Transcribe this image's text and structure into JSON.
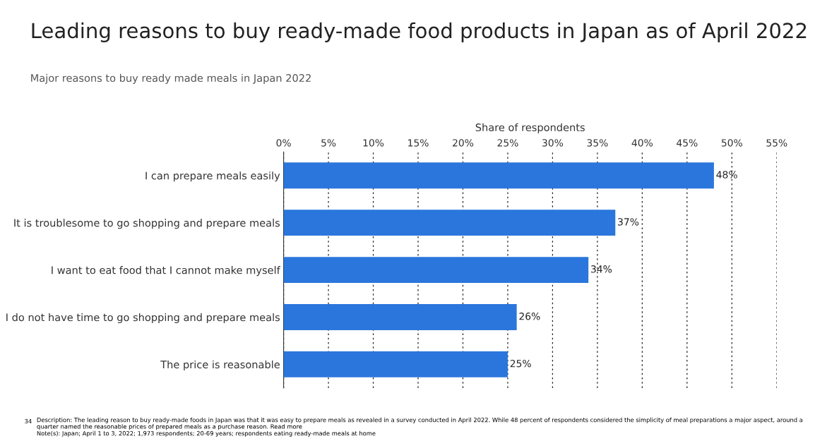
{
  "chart_data": {
    "type": "bar",
    "orientation": "horizontal",
    "title": "Leading reasons to buy ready-made food products in Japan as of April 2022",
    "subtitle": "Major reasons to buy ready made meals in Japan 2022",
    "xlabel": "Share of respondents",
    "categories": [
      "I can prepare meals easily",
      "It is troublesome to go shopping and prepare meals",
      "I want to eat food that I cannot make myself",
      "I do not have time to go shopping and prepare meals",
      "The price is reasonable"
    ],
    "values": [
      48,
      37,
      34,
      26,
      25
    ],
    "color": "#2a76dd",
    "value_labels": [
      "48%",
      "37%",
      "34%",
      "26%",
      "25%"
    ],
    "xlim": [
      0,
      55
    ],
    "xticks": [
      {
        "value": 0,
        "label": "0%"
      },
      {
        "value": 5,
        "label": "5%"
      },
      {
        "value": 10,
        "label": "10%"
      },
      {
        "value": 15,
        "label": "15%"
      },
      {
        "value": 20,
        "label": "20%"
      },
      {
        "value": 25,
        "label": "25%"
      },
      {
        "value": 30,
        "label": "30%"
      },
      {
        "value": 35,
        "label": "35%"
      },
      {
        "value": 40,
        "label": "40%"
      },
      {
        "value": 45,
        "label": "45%"
      },
      {
        "value": 50,
        "label": "50%"
      },
      {
        "value": 55,
        "label": "55%"
      }
    ],
    "grid": "x",
    "legend": false,
    "annotations": [
      "34",
      "Description: The leading reason to buy ready-made foods in Japan was that it was easy to prepare meals as revealed in a survey conducted in April 2022. While 48 percent of respondents considered the simplicity of meal preparations a major aspect, around a quarter named the reasonable prices of prepared meals as a purchase reason. Read more",
      "Note(s): Japan; April 1 to 3, 2022; 1,973 respondents; 20-69 years; respondents eating ready-made meals at home"
    ]
  }
}
